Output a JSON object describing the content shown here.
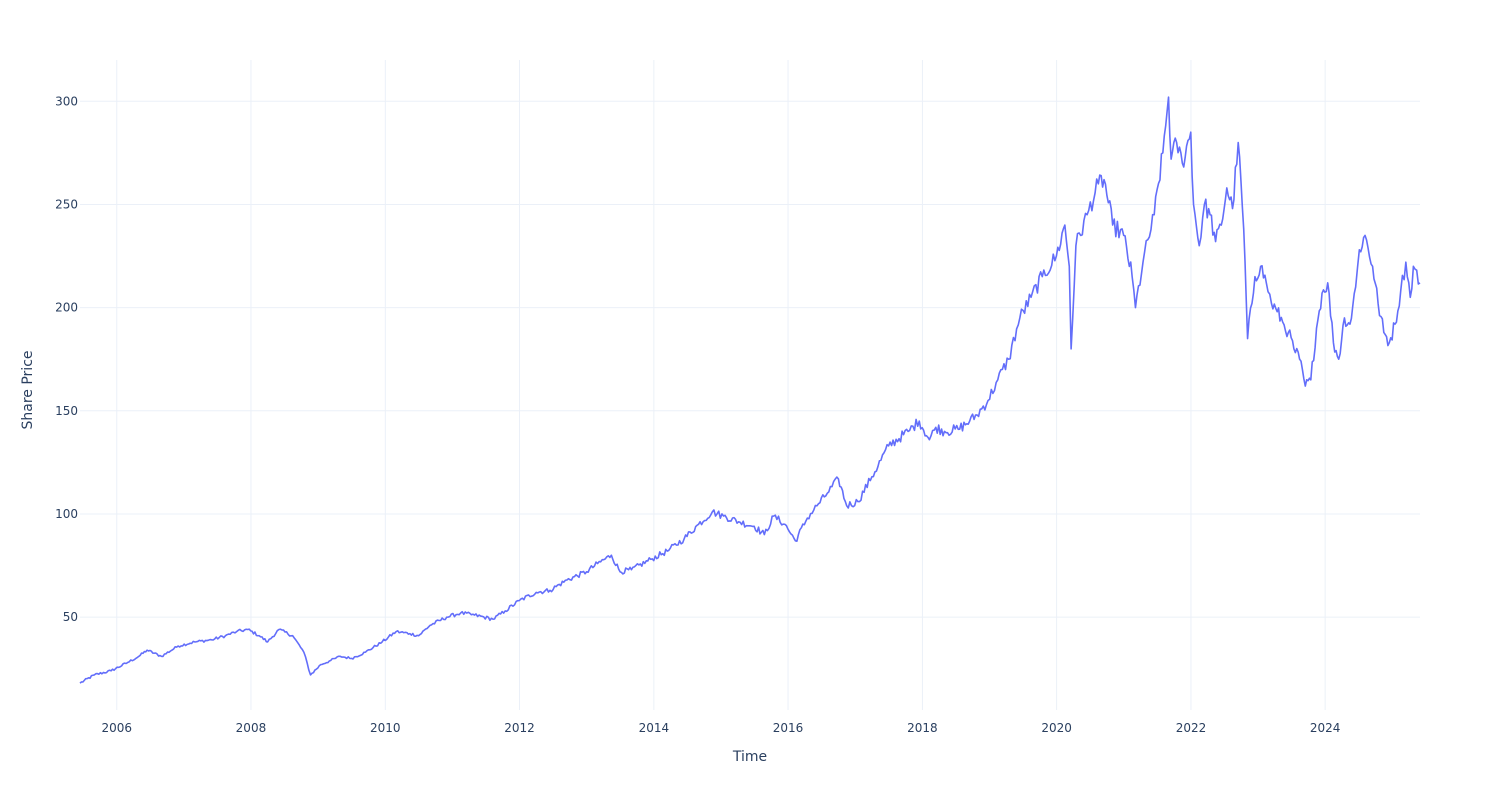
{
  "chart_data": {
    "type": "line",
    "title": "",
    "xlabel": "Time",
    "ylabel": "Share Price",
    "xlim": [
      "2005-06-15",
      "2025-05-31"
    ],
    "ylim": [
      5,
      320
    ],
    "x_ticks": [
      "2006",
      "2008",
      "2010",
      "2012",
      "2014",
      "2016",
      "2018",
      "2020",
      "2022",
      "2024"
    ],
    "y_ticks": [
      50,
      100,
      150,
      200,
      250,
      300
    ],
    "grid": true,
    "legend": "none",
    "line_color": "#636efa",
    "series": [
      {
        "x": [
          "2005-06-15",
          "2005-09-01",
          "2005-12-01",
          "2006-03-01",
          "2006-05-01",
          "2006-06-15",
          "2006-09-01",
          "2006-12-01",
          "2007-03-01",
          "2007-06-01",
          "2007-08-15",
          "2007-10-15",
          "2007-12-15",
          "2008-02-15",
          "2008-04-01",
          "2008-06-01",
          "2008-08-15",
          "2008-10-15",
          "2008-11-20",
          "2009-01-15",
          "2009-03-10",
          "2009-05-01",
          "2009-07-01",
          "2009-09-15",
          "2009-12-15",
          "2010-03-01",
          "2010-05-15",
          "2010-07-01",
          "2010-09-01",
          "2010-12-01",
          "2011-02-15",
          "2011-05-01",
          "2011-08-10",
          "2011-10-15",
          "2011-12-31",
          "2012-04-01",
          "2012-06-15",
          "2012-09-15",
          "2012-12-31",
          "2013-03-01",
          "2013-05-15",
          "2013-07-01",
          "2013-09-01",
          "2013-12-15",
          "2014-03-15",
          "2014-06-15",
          "2014-09-01",
          "2014-11-15",
          "2015-01-15",
          "2015-04-15",
          "2015-07-01",
          "2015-08-25",
          "2015-10-15",
          "2015-12-15",
          "2016-02-10",
          "2016-04-15",
          "2016-06-15",
          "2016-08-01",
          "2016-10-01",
          "2016-11-15",
          "2017-01-15",
          "2017-04-01",
          "2017-07-01",
          "2017-10-15",
          "2017-12-15",
          "2018-02-08",
          "2018-03-15",
          "2018-05-01",
          "2018-07-15",
          "2018-09-15",
          "2018-10-25",
          "2018-12-24",
          "2019-02-15",
          "2019-04-15",
          "2019-06-15",
          "2019-08-15",
          "2019-10-15",
          "2019-12-31",
          "2020-02-15",
          "2020-03-10",
          "2020-03-20",
          "2020-04-15",
          "2020-06-15",
          "2020-08-15",
          "2020-09-15",
          "2020-11-01",
          "2020-12-31",
          "2021-02-15",
          "2021-03-05",
          "2021-04-15",
          "2021-06-15",
          "2021-08-01",
          "2021-09-01",
          "2021-09-15",
          "2021-10-15",
          "2021-11-15",
          "2021-12-31",
          "2022-01-15",
          "2022-02-15",
          "2022-03-15",
          "2022-04-15",
          "2022-05-15",
          "2022-06-15",
          "2022-07-15",
          "2022-08-15",
          "2022-09-15",
          "2022-10-15",
          "2022-11-05",
          "2022-12-15",
          "2023-01-15",
          "2023-02-15",
          "2023-03-15",
          "2023-04-15",
          "2023-05-15",
          "2023-06-15",
          "2023-07-15",
          "2023-08-15",
          "2023-09-15",
          "2023-10-15",
          "2023-11-15",
          "2023-12-15",
          "2024-01-15",
          "2024-02-15",
          "2024-03-15",
          "2024-04-15",
          "2024-05-15",
          "2024-06-15",
          "2024-07-05",
          "2024-08-05",
          "2024-09-15",
          "2024-10-15",
          "2024-11-15",
          "2024-12-15",
          "2025-01-15",
          "2025-02-15",
          "2025-03-15",
          "2025-04-08",
          "2025-04-25",
          "2025-05-31"
        ],
        "y": [
          18,
          22,
          24,
          28,
          31,
          34,
          31,
          36,
          38,
          39,
          41,
          43,
          44,
          41,
          38,
          44,
          41,
          33,
          22,
          27,
          29,
          31,
          30,
          33,
          38,
          43,
          42,
          41,
          46,
          50,
          52,
          51,
          49,
          53,
          58,
          62,
          63,
          68,
          72,
          76,
          80,
          72,
          73,
          78,
          82,
          88,
          95,
          101,
          99,
          96,
          94,
          90,
          99,
          95,
          87,
          98,
          105,
          110,
          117,
          104,
          106,
          118,
          133,
          140,
          145,
          136,
          142,
          140,
          141,
          145,
          148,
          155,
          165,
          175,
          195,
          205,
          215,
          225,
          240,
          220,
          180,
          230,
          245,
          260,
          262,
          240,
          235,
          215,
          200,
          222,
          245,
          275,
          302,
          272,
          280,
          270,
          285,
          250,
          230,
          250,
          245,
          232,
          240,
          258,
          248,
          280,
          238,
          185,
          215,
          220,
          212,
          202,
          198,
          193,
          188,
          180,
          175,
          162,
          165,
          190,
          207,
          212,
          183,
          175,
          195,
          192,
          210,
          228,
          235,
          220,
          202,
          188,
          183,
          192,
          208,
          222,
          205,
          220,
          212
        ]
      }
    ]
  }
}
